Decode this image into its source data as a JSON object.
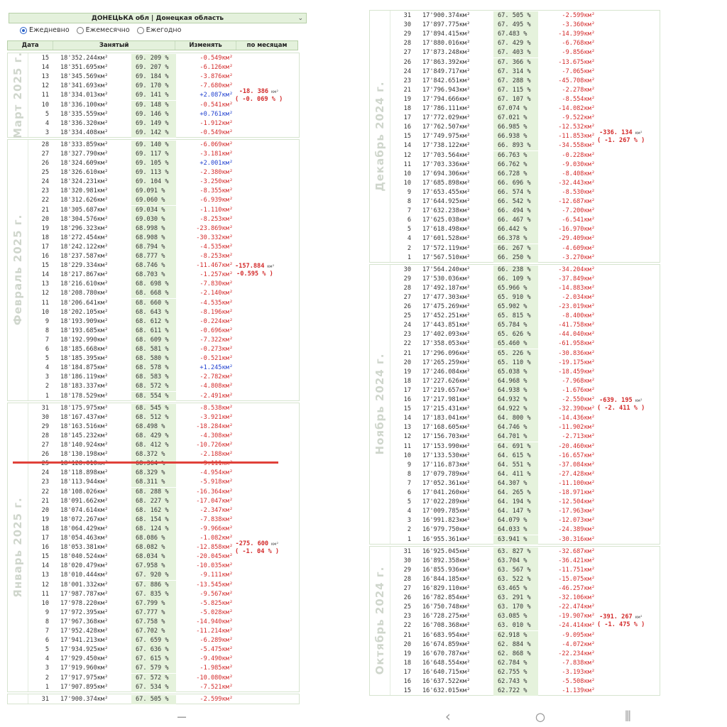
{
  "header": {
    "region": "ДОНЕЦЬКА обл  |  Донецкая область"
  },
  "radio_options": [
    {
      "label": "Ежедневно",
      "checked": true
    },
    {
      "label": "Ежемесячно",
      "checked": false
    },
    {
      "label": "Ежегодно",
      "checked": false
    }
  ],
  "columns": [
    "Дата",
    "Занятый",
    "Изменять",
    "по месяцам"
  ],
  "units": {
    "area": "км²",
    "percent": "%"
  },
  "left_months": [
    {
      "name": "Март 2025 г.",
      "summary_value": "-18. 386",
      "summary_percent": "( -0. 069 % )",
      "rows": [
        [
          "15",
          "18'352.244",
          "69. 209",
          "-0.549"
        ],
        [
          "14",
          "18'351.695",
          "69. 207",
          "-6.126"
        ],
        [
          "13",
          "18'345.569",
          "69. 184",
          "-3.876"
        ],
        [
          "12",
          "18'341.693",
          "69. 170",
          "-7.680"
        ],
        [
          "11",
          "18'334.013",
          "69. 141",
          "+2.087"
        ],
        [
          "10",
          "18'336.100",
          "69. 148",
          "-0.541"
        ],
        [
          "5",
          "18'335.559",
          "69. 146",
          "+0.761"
        ],
        [
          "4",
          "18'336.320",
          "69. 149",
          "-1.912"
        ],
        [
          "3",
          "18'334.408",
          "69. 142",
          "-0.549"
        ]
      ]
    },
    {
      "name": "Февраль 2025 г.",
      "summary_value": "-157.884",
      "summary_percent": "-0.595 % )",
      "rows": [
        [
          "28",
          "18'333.859",
          "69. 140",
          "-6.069"
        ],
        [
          "27",
          "18'327.790",
          "69. 117",
          "-3.181"
        ],
        [
          "26",
          "18'324.609",
          "69. 105",
          "+2.001"
        ],
        [
          "25",
          "18'326.610",
          "69. 113",
          "-2.380"
        ],
        [
          "24",
          "18'324.231",
          "69. 104",
          "-3.250"
        ],
        [
          "23",
          "18'320.981",
          "69.091",
          "-8.355"
        ],
        [
          "22",
          "18'312.626",
          "69.060",
          "-6.939"
        ],
        [
          "21",
          "18'305.687",
          "69.034",
          "-1.110"
        ],
        [
          "20",
          "18'304.576",
          "69.030",
          "-8.253"
        ],
        [
          "19",
          "18'296.323",
          "68.998",
          "-23.869"
        ],
        [
          "18",
          "18'272.454",
          "68.908",
          "-30.332"
        ],
        [
          "17",
          "18'242.122",
          "68.794",
          "-4.535"
        ],
        [
          "16",
          "18'237.587",
          "68.777",
          "-8.253"
        ],
        [
          "15",
          "18'229.334",
          "68.746",
          "-11.467"
        ],
        [
          "14",
          "18'217.867",
          "68.703",
          "-1.257"
        ],
        [
          "13",
          "18'216.610",
          "68. 698",
          "-7.830"
        ],
        [
          "12",
          "18'208.780",
          "68. 668",
          "-2.140"
        ],
        [
          "11",
          "18'206.641",
          "68. 660",
          "-4.535"
        ],
        [
          "10",
          "18'202.105",
          "68. 643",
          "-8.196"
        ],
        [
          "9",
          "18'193.909",
          "68. 612",
          "-0.224"
        ],
        [
          "8",
          "18'193.685",
          "68. 611",
          "-0.696"
        ],
        [
          "7",
          "18'192.990",
          "68. 609",
          "-7.322"
        ],
        [
          "6",
          "18'185.668",
          "68. 581",
          "-0.273"
        ],
        [
          "5",
          "18'185.395",
          "68. 580",
          "-0.521"
        ],
        [
          "4",
          "18'184.875",
          "68. 578",
          "+1.245"
        ],
        [
          "3",
          "18'186.119",
          "68. 583",
          "-2.782"
        ],
        [
          "2",
          "18'183.337",
          "68. 572",
          "-4.808"
        ],
        [
          "1",
          "18'178.529",
          "68. 554",
          "-2.491"
        ]
      ]
    },
    {
      "name": "Январь 2025 г.",
      "summary_value": "-275. 600",
      "summary_percent": "( -1. 04 % )",
      "rows": [
        [
          "31",
          "18'175.975",
          "68. 545",
          "-8.538"
        ],
        [
          "30",
          "18'167.437",
          "68. 512",
          "-3.921"
        ],
        [
          "29",
          "18'163.516",
          "68.498",
          "-18.284"
        ],
        [
          "28",
          "18'145.232",
          "68. 429",
          "-4.308"
        ],
        [
          "27",
          "18'140.924",
          "68. 412",
          "-10.726"
        ],
        [
          "26",
          "18'130.198",
          "68.372",
          "-2.188"
        ],
        [
          "25",
          "18'128.010",
          "68.364",
          "-9.111"
        ],
        [
          "24",
          "18'118.898",
          "68.329",
          "-4.954"
        ],
        [
          "23",
          "18'113.944",
          "68.311",
          "-5.918"
        ],
        [
          "22",
          "18'108.026",
          "68. 288",
          "-16.364"
        ],
        [
          "21",
          "18'091.662",
          "68. 227",
          "-17.047"
        ],
        [
          "20",
          "18'074.614",
          "68. 162",
          "-2.347"
        ],
        [
          "19",
          "18'072.267",
          "68. 154",
          "-7.838"
        ],
        [
          "18",
          "18'064.429",
          "68. 124",
          "-9.966"
        ],
        [
          "17",
          "18'054.463",
          "68.086",
          "-1.082"
        ],
        [
          "16",
          "18'053.381",
          "68.082",
          "-12.858"
        ],
        [
          "15",
          "18'040.524",
          "68.034",
          "-20.045"
        ],
        [
          "14",
          "18'020.479",
          "67.958",
          "-10.035"
        ],
        [
          "13",
          "18'010.444",
          "67. 920",
          "-9.111"
        ],
        [
          "12",
          "18'001.332",
          "67. 886",
          "-13.545"
        ],
        [
          "11",
          "17'987.787",
          "67. 835",
          "-9.567"
        ],
        [
          "10",
          "17'978.220",
          "67.799",
          "-5.825"
        ],
        [
          "9",
          "17'972.395",
          "67.777",
          "-5.028"
        ],
        [
          "8",
          "17'967.368",
          "67.758",
          "-14.940"
        ],
        [
          "7",
          "17'952.428",
          "67.702",
          "-11.214"
        ],
        [
          "6",
          "17'941.213",
          "67. 659",
          "-6.289"
        ],
        [
          "5",
          "17'934.925",
          "67. 636",
          "-5.475"
        ],
        [
          "4",
          "17'929.450",
          "67. 615",
          "-9.490"
        ],
        [
          "3",
          "17'919.960",
          "67. 579",
          "-1.985"
        ],
        [
          "2",
          "17'917.975",
          "67. 572",
          "-10.080"
        ],
        [
          "1",
          "17'907.895",
          "67. 534",
          "-7.521"
        ]
      ]
    },
    {
      "name": "",
      "summary_value": "",
      "summary_percent": "",
      "rows": [
        [
          "31",
          "17'900.374",
          "67. 505",
          "-2.599"
        ]
      ]
    }
  ],
  "right_months": [
    {
      "name": "Декабрь 2024 г.",
      "summary_value": "-336. 134",
      "summary_percent": "( -1. 267 % )",
      "rows": [
        [
          "31",
          "17'900.374",
          "67. 505",
          "-2.599"
        ],
        [
          "30",
          "17'897.775",
          "67. 495",
          "-3.360"
        ],
        [
          "29",
          "17'894.415",
          "67.483",
          "-14.399"
        ],
        [
          "28",
          "17'880.016",
          "67. 429",
          "-6.768"
        ],
        [
          "27",
          "17'873.248",
          "67. 403",
          "-9.856"
        ],
        [
          "26",
          "17'863.392",
          "67. 366",
          "-13.675"
        ],
        [
          "24",
          "17'849.717",
          "67. 314",
          "-7.065"
        ],
        [
          "23",
          "17'842.651",
          "67. 288",
          "-45.708"
        ],
        [
          "21",
          "17'796.943",
          "67. 115",
          "-2.278"
        ],
        [
          "19",
          "17'794.666",
          "67. 107",
          "-8.554"
        ],
        [
          "18",
          "17'786.111",
          "67.074",
          "-14.082"
        ],
        [
          "17",
          "17'772.029",
          "67.021",
          "-9.522"
        ],
        [
          "16",
          "17'762.507",
          "66.985",
          "-12.532"
        ],
        [
          "15",
          "17'749.975",
          "66.938",
          "-11.853"
        ],
        [
          "14",
          "17'738.122",
          "66. 893",
          "-34.558"
        ],
        [
          "12",
          "17'703.564",
          "66.763",
          "-0.228"
        ],
        [
          "11",
          "17'703.336",
          "66.762",
          "-9.030"
        ],
        [
          "10",
          "17'694.306",
          "66.728",
          "-8.408"
        ],
        [
          "10",
          "17'685.898",
          "66. 696",
          "-32.443"
        ],
        [
          "9",
          "17'653.455",
          "66. 574",
          "-8.530"
        ],
        [
          "8",
          "17'644.925",
          "66. 542",
          "-12.687"
        ],
        [
          "7",
          "17'632.238",
          "66. 494",
          "-7.200"
        ],
        [
          "6",
          "17'625.038",
          "66. 467",
          "-6.541"
        ],
        [
          "5",
          "17'618.498",
          "66.442",
          "-16.970"
        ],
        [
          "4",
          "17'601.528",
          "66.378",
          "-29.409"
        ],
        [
          "2",
          "17'572.119",
          "66. 267",
          "-4.609"
        ],
        [
          "1",
          "17'567.510",
          "66. 250",
          "-3.270"
        ]
      ]
    },
    {
      "name": "Ноябрь 2024 г.",
      "summary_value": "-639. 195",
      "summary_percent": "( -2. 411 % )",
      "rows": [
        [
          "30",
          "17'564.240",
          "66. 238",
          "-34.204"
        ],
        [
          "29",
          "17'530.036",
          "66. 109",
          "-37.849"
        ],
        [
          "28",
          "17'492.187",
          "65.966",
          "-14.883"
        ],
        [
          "27",
          "17'477.303",
          "65. 910",
          "-2.034"
        ],
        [
          "26",
          "17'475.269",
          "65.902",
          "-23.019"
        ],
        [
          "25",
          "17'452.251",
          "65. 815",
          "-8.400"
        ],
        [
          "24",
          "17'443.851",
          "65.784",
          "-41.758"
        ],
        [
          "23",
          "17'402.093",
          "65. 626",
          "-44.040"
        ],
        [
          "22",
          "17'358.053",
          "65.460",
          "-61.958"
        ],
        [
          "21",
          "17'296.096",
          "65. 226",
          "-30.836"
        ],
        [
          "20",
          "17'265.259",
          "65. 110",
          "-19.175"
        ],
        [
          "19",
          "17'246.084",
          "65.038",
          "-18.459"
        ],
        [
          "18",
          "17'227.626",
          "64.968",
          "-7.968"
        ],
        [
          "17",
          "17'219.657",
          "64.938",
          "-1.676"
        ],
        [
          "16",
          "17'217.981",
          "64.932",
          "-2.550"
        ],
        [
          "15",
          "17'215.431",
          "64.922",
          "-32.390"
        ],
        [
          "14",
          "17'183.041",
          "64. 800",
          "-14.436"
        ],
        [
          "13",
          "17'168.605",
          "64.746",
          "-11.902"
        ],
        [
          "12",
          "17'156.703",
          "64.701",
          "-2.713"
        ],
        [
          "11",
          "17'153.990",
          "64. 691",
          "-20.460"
        ],
        [
          "10",
          "17'133.530",
          "64. 615",
          "-16.657"
        ],
        [
          "9",
          "17'116.873",
          "64. 551",
          "-37.084"
        ],
        [
          "8",
          "17'079.789",
          "64. 411",
          "-27.428"
        ],
        [
          "7",
          "17'052.361",
          "64.307",
          "-11.100"
        ],
        [
          "6",
          "17'041.260",
          "64. 265",
          "-18.971"
        ],
        [
          "5",
          "17'022.289",
          "64. 194",
          "-12.504"
        ],
        [
          "4",
          "17'009.785",
          "64. 147",
          "-17.963"
        ],
        [
          "3",
          "16'991.823",
          "64.079",
          "-12.073"
        ],
        [
          "2",
          "16'979.750",
          "64.033",
          "-24.389"
        ],
        [
          "1",
          "16'955.361",
          "63.941",
          "-30.316"
        ]
      ]
    },
    {
      "name": "Октябрь 2024 г.",
      "summary_value": "-391. 267",
      "summary_percent": "( -1. 475 % )",
      "rows": [
        [
          "31",
          "16'925.045",
          "63. 827",
          "-32.687"
        ],
        [
          "30",
          "16'892.358",
          "63.704",
          "-36.421"
        ],
        [
          "29",
          "16'855.936",
          "63. 567",
          "-11.751"
        ],
        [
          "28",
          "16'844.185",
          "63. 522",
          "-15.075"
        ],
        [
          "27",
          "16'829.110",
          "63.465",
          "-46.257"
        ],
        [
          "26",
          "16'782.854",
          "63. 291",
          "-32.106"
        ],
        [
          "25",
          "16'750.748",
          "63. 170",
          "-22.474"
        ],
        [
          "23",
          "16'728.275",
          "63.085",
          "-19.907"
        ],
        [
          "22",
          "16'708.368",
          "63. 010",
          "-24.414"
        ],
        [
          "21",
          "16'683.954",
          "62.918",
          "-9.095"
        ],
        [
          "20",
          "16'674.859",
          "62. 884",
          "-4.072"
        ],
        [
          "19",
          "16'670.787",
          "62. 868",
          "-22.234"
        ],
        [
          "18",
          "16'648.554",
          "62.784",
          "-7.838"
        ],
        [
          "17",
          "16'640.715",
          "62.755",
          "-3.193"
        ],
        [
          "16",
          "16'637.522",
          "62.743",
          "-5.508"
        ],
        [
          "15",
          "16'632.015",
          "62.722",
          "-1.139"
        ]
      ]
    }
  ]
}
